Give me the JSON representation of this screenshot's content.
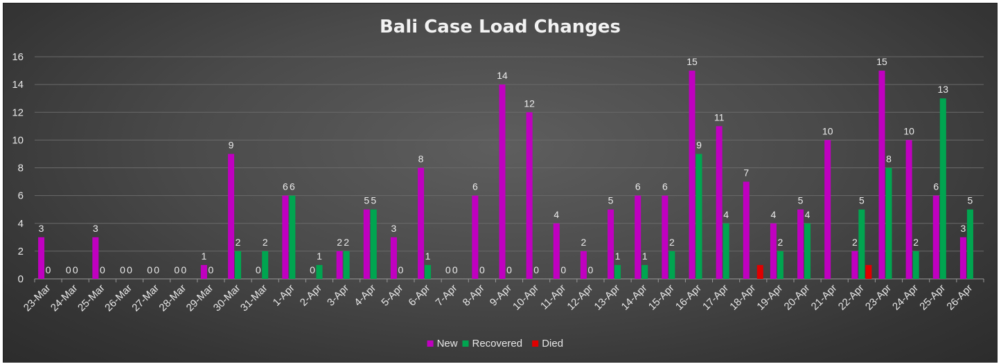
{
  "chart_data": {
    "type": "bar",
    "title": "Bali Case Load Changes",
    "xlabel": "",
    "ylabel": "",
    "ylim": [
      0,
      16
    ],
    "yticks": [
      0,
      2,
      4,
      6,
      8,
      10,
      12,
      14,
      16
    ],
    "grid": true,
    "legend_position": "bottom",
    "categories": [
      "23-Mar",
      "24-Mar",
      "25-Mar",
      "26-Mar",
      "27-Mar",
      "28-Mar",
      "29-Mar",
      "30-Mar",
      "31-Mar",
      "1-Apr",
      "2-Apr",
      "3-Apr",
      "4-Apr",
      "5-Apr",
      "6-Apr",
      "7-Apr",
      "8-Apr",
      "9-Apr",
      "10-Apr",
      "11-Apr",
      "12-Apr",
      "13-Apr",
      "14-Apr",
      "15-Apr",
      "16-Apr",
      "17-Apr",
      "18-Apr",
      "19-Apr",
      "20-Apr",
      "21-Apr",
      "22-Apr",
      "23-Apr",
      "24-Apr",
      "25-Apr",
      "26-Apr"
    ],
    "series": [
      {
        "name": "New",
        "color": "#c000c0",
        "values": [
          3,
          0,
          3,
          0,
          0,
          0,
          1,
          9,
          0,
          6,
          0,
          2,
          5,
          3,
          8,
          0,
          6,
          14,
          12,
          4,
          2,
          5,
          6,
          6,
          15,
          11,
          7,
          4,
          5,
          10,
          2,
          15,
          10,
          6,
          3
        ],
        "labels": [
          3,
          0,
          3,
          0,
          0,
          0,
          1,
          9,
          0,
          6,
          0,
          2,
          5,
          3,
          8,
          0,
          6,
          14,
          12,
          4,
          2,
          5,
          6,
          6,
          15,
          11,
          7,
          4,
          5,
          10,
          2,
          15,
          10,
          6,
          3
        ]
      },
      {
        "name": "Recovered",
        "color": "#00a550",
        "values": [
          0,
          0,
          0,
          0,
          0,
          0,
          0,
          2,
          2,
          6,
          1,
          2,
          5,
          0,
          1,
          0,
          0,
          0,
          0,
          0,
          0,
          1,
          1,
          2,
          9,
          4,
          0,
          2,
          4,
          0,
          5,
          8,
          2,
          13,
          5
        ],
        "labels": [
          0,
          0,
          0,
          0,
          0,
          0,
          0,
          2,
          2,
          6,
          1,
          2,
          5,
          0,
          1,
          0,
          0,
          0,
          0,
          0,
          0,
          1,
          1,
          2,
          9,
          4,
          null,
          2,
          4,
          null,
          5,
          8,
          2,
          13,
          5
        ]
      },
      {
        "name": "Died",
        "color": "#e00000",
        "values": [
          0,
          0,
          0,
          0,
          0,
          0,
          0,
          0,
          0,
          0,
          0,
          0,
          0,
          0,
          0,
          0,
          0,
          0,
          0,
          0,
          0,
          0,
          0,
          0,
          0,
          0,
          1,
          0,
          0,
          0,
          1,
          0,
          0,
          0,
          0
        ],
        "labels": []
      }
    ]
  }
}
